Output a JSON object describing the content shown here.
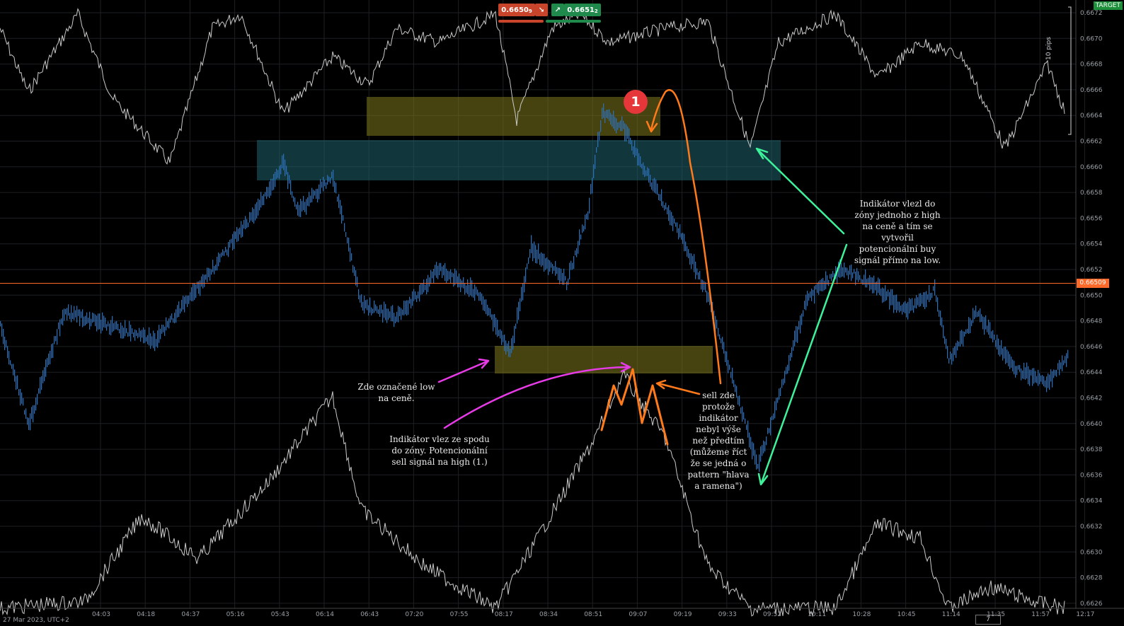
{
  "top_bar": {
    "sell_price": "0.6650",
    "sell_price_sub": "9",
    "buy_price": "0.6651",
    "buy_price_sub": "2",
    "sell_color": "#c8452b",
    "buy_color": "#1f8a4c"
  },
  "target_label": "TARGET",
  "pips_label": "10 pips",
  "current_price": "0.66509",
  "timezone": "27 Mar 2023, UTC+2",
  "zoom_value": "7",
  "price_axis": [
    "0.6672",
    "0.6670",
    "0.6668",
    "0.6666",
    "0.6664",
    "0.6662",
    "0.6660",
    "0.6658",
    "0.6656",
    "0.6654",
    "0.6652",
    "0.6650",
    "0.6648",
    "0.6646",
    "0.6644",
    "0.6642",
    "0.6640",
    "0.6638",
    "0.6636",
    "0.6634",
    "0.6632",
    "0.6630",
    "0.6628",
    "0.6626"
  ],
  "time_axis": [
    "04:03",
    "04:18",
    "04:37",
    "05:16",
    "05:43",
    "06:14",
    "06:43",
    "07:20",
    "07:55",
    "08:17",
    "08:34",
    "08:51",
    "09:07",
    "09:19",
    "09:33",
    "09:52",
    "10:11",
    "10:28",
    "10:45",
    "11:14",
    "11:35",
    "11:57",
    "12:17"
  ],
  "marker_label": "1",
  "annotations": {
    "low_marked": "Zde označené low\nna ceně.",
    "indicator_entered": "Indikátor vlez ze spodu\ndo zóny. Potencionální\nsell signál na high (1.)",
    "sell_here": "sell zde\nprotože\nindikátor\nnebyl výše\nnež předtím\n(můžeme říct\nže se jedná o\npattern \"hlava\na ramena\")",
    "buy_signal": "Indikátor vlezl do\nzóny jednoho z high\nna ceně a tím se\nvytvořil\npotencionální buy\nsignál přímo na low."
  },
  "colors": {
    "zone_yellow": "#807a1e",
    "zone_cyan": "#1f6470",
    "price_bars": "#2f6fb6",
    "indicator_line": "#c9c9c9",
    "current_price_line": "#ff6a2a",
    "arrow_orange": "#ff7a1a",
    "arrow_magenta": "#e63be6",
    "arrow_green": "#3df29a"
  }
}
